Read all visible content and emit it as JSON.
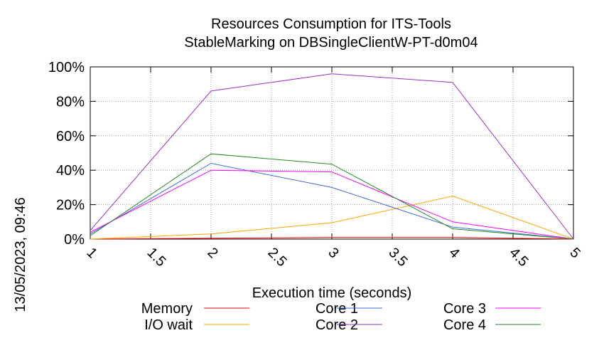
{
  "chart_data": {
    "type": "line",
    "title_line1": "Resources Consumption for ITS-Tools",
    "title_line2": "StableMarking on DBSingleClientW-PT-d0m04",
    "xlabel": "Execution time (seconds)",
    "ylabel": "",
    "side_label": "13/05/2023, 09:46",
    "xlim": [
      1,
      5
    ],
    "ylim": [
      0,
      100
    ],
    "x_ticks": [
      "1",
      "1.5",
      "2",
      "2.5",
      "3",
      "3.5",
      "4",
      "4.5",
      "5"
    ],
    "y_ticks": [
      "0%",
      "20%",
      "40%",
      "60%",
      "80%",
      "100%"
    ],
    "grid": true,
    "legend_placement": "bottom",
    "x": [
      1,
      2,
      3,
      4,
      5
    ],
    "series": [
      {
        "name": "Memory",
        "color": "#ff0000",
        "values": [
          0,
          0.5,
          1,
          1,
          0
        ]
      },
      {
        "name": "I/O wait",
        "color": "#ffa500",
        "values": [
          0,
          3,
          9.5,
          25,
          0
        ]
      },
      {
        "name": "Core 1",
        "color": "#4169e1",
        "values": [
          3,
          44,
          30,
          7,
          0
        ]
      },
      {
        "name": "Core 2",
        "color": "#9932cc",
        "values": [
          5,
          86,
          96,
          91,
          0
        ]
      },
      {
        "name": "Core 3",
        "color": "#ff00ff",
        "values": [
          4,
          40,
          39,
          10,
          0
        ]
      },
      {
        "name": "Core 4",
        "color": "#228b22",
        "values": [
          2,
          49.5,
          43.5,
          6,
          0
        ]
      }
    ]
  }
}
